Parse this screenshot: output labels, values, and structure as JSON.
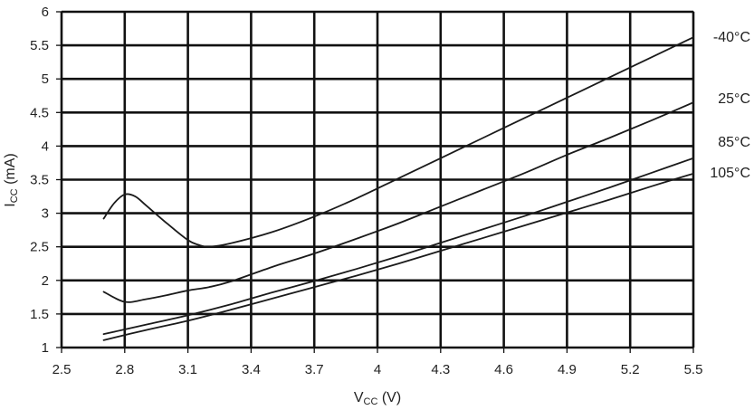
{
  "chart_data": {
    "type": "line",
    "xlabel": {
      "main": "V",
      "sub": "CC",
      "unit": " (V)"
    },
    "ylabel": {
      "main": "I",
      "sub": "CC",
      "unit": " (mA)"
    },
    "xlim": [
      2.5,
      5.5
    ],
    "ylim": [
      1,
      6
    ],
    "xticks": [
      "2.5",
      "2.8",
      "3.1",
      "3.4",
      "3.7",
      "4",
      "4.3",
      "4.6",
      "4.9",
      "5.2",
      "5.5"
    ],
    "yticks": [
      "1",
      "1.5",
      "2",
      "2.5",
      "3",
      "3.5",
      "4",
      "4.5",
      "5",
      "5.5",
      "6"
    ],
    "grid": true,
    "series": [
      {
        "name": "-40°C",
        "x": [
          2.7,
          2.75,
          2.8,
          2.85,
          2.9,
          3.0,
          3.1,
          3.15,
          3.2,
          3.3,
          3.5,
          3.7,
          3.9,
          4.1,
          4.3,
          4.5,
          4.7,
          4.9,
          5.1,
          5.3,
          5.5
        ],
        "y": [
          2.92,
          3.15,
          3.28,
          3.25,
          3.12,
          2.85,
          2.6,
          2.53,
          2.5,
          2.55,
          2.72,
          2.95,
          3.22,
          3.52,
          3.82,
          4.12,
          4.42,
          4.72,
          5.02,
          5.32,
          5.62
        ]
      },
      {
        "name": "25°C",
        "x": [
          2.7,
          2.8,
          2.9,
          3.0,
          3.1,
          3.2,
          3.3,
          3.5,
          3.7,
          3.9,
          4.1,
          4.3,
          4.5,
          4.7,
          4.9,
          5.1,
          5.3,
          5.5
        ],
        "y": [
          1.83,
          1.68,
          1.72,
          1.78,
          1.85,
          1.9,
          1.98,
          2.2,
          2.4,
          2.62,
          2.85,
          3.1,
          3.35,
          3.6,
          3.87,
          4.12,
          4.38,
          4.65
        ]
      },
      {
        "name": "85°C",
        "x": [
          2.7,
          2.9,
          3.1,
          3.3,
          3.5,
          3.7,
          3.9,
          4.1,
          4.3,
          4.5,
          4.7,
          4.9,
          5.1,
          5.3,
          5.5
        ],
        "y": [
          1.2,
          1.34,
          1.48,
          1.64,
          1.82,
          1.99,
          2.17,
          2.36,
          2.56,
          2.76,
          2.96,
          3.17,
          3.38,
          3.6,
          3.82
        ]
      },
      {
        "name": "105°C",
        "x": [
          2.7,
          2.9,
          3.1,
          3.3,
          3.5,
          3.7,
          3.9,
          4.1,
          4.3,
          4.5,
          4.7,
          4.9,
          5.1,
          5.3,
          5.5
        ],
        "y": [
          1.11,
          1.26,
          1.4,
          1.56,
          1.73,
          1.9,
          2.07,
          2.25,
          2.44,
          2.63,
          2.82,
          3.01,
          3.2,
          3.4,
          3.59
        ]
      }
    ]
  }
}
